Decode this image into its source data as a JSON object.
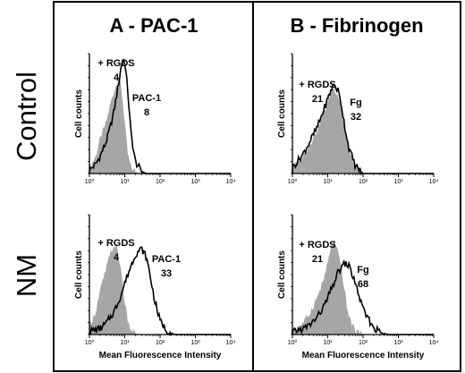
{
  "figure": {
    "row_labels": [
      "Control",
      "NM"
    ],
    "panel_titles": [
      "A - PAC-1",
      "B - Fibrinogen"
    ]
  },
  "chart_data": [
    {
      "type": "area",
      "panel": "A - PAC-1",
      "row": "Control",
      "xlabel": "",
      "ylabel": "Cell counts",
      "xscale": "log",
      "xlim": [
        1,
        10000
      ],
      "x_ticks": [
        "10⁰",
        "10¹",
        "10²",
        "10³",
        "10⁴"
      ],
      "grid": false,
      "series": [
        {
          "name": "+ RGDS",
          "style": "gray filled",
          "color": "#a6a6a6",
          "x": [
            1,
            1.5,
            2,
            3,
            4,
            5,
            6,
            7,
            8,
            10,
            12,
            15,
            20,
            30,
            50
          ],
          "y": [
            0.05,
            0.15,
            0.3,
            0.45,
            0.62,
            0.72,
            0.8,
            0.85,
            0.75,
            0.45,
            0.18,
            0.05,
            0.02,
            0,
            0
          ]
        },
        {
          "name": "PAC-1",
          "style": "black outline",
          "color": "#000000",
          "x": [
            1,
            1.5,
            2,
            3,
            4,
            5,
            6,
            7,
            8,
            9,
            10,
            12,
            15,
            20,
            30,
            40
          ],
          "y": [
            0.03,
            0.08,
            0.15,
            0.28,
            0.42,
            0.55,
            0.7,
            0.82,
            0.95,
            1.0,
            0.97,
            0.75,
            0.35,
            0.1,
            0.02,
            0
          ]
        }
      ],
      "annotations": [
        {
          "text": "+ RGDS",
          "value": "4"
        },
        {
          "text": "PAC-1",
          "value": "8"
        }
      ]
    },
    {
      "type": "area",
      "panel": "B - Fibrinogen",
      "row": "Control",
      "xlabel": "",
      "ylabel": "Cell counts",
      "xscale": "log",
      "xlim": [
        1,
        10000
      ],
      "x_ticks": [
        "10⁰",
        "10¹",
        "10²",
        "10³",
        "10⁴"
      ],
      "grid": false,
      "series": [
        {
          "name": "+ RGDS",
          "style": "gray filled",
          "color": "#a6a6a6",
          "x": [
            1,
            2,
            3,
            5,
            7,
            10,
            12,
            15,
            20,
            25,
            30,
            40,
            60,
            100
          ],
          "y": [
            0.05,
            0.15,
            0.25,
            0.38,
            0.5,
            0.62,
            0.7,
            0.75,
            0.68,
            0.55,
            0.4,
            0.2,
            0.06,
            0
          ]
        },
        {
          "name": "Fg",
          "style": "black outline",
          "color": "#000000",
          "x": [
            1,
            2,
            3,
            5,
            7,
            10,
            12,
            15,
            20,
            25,
            30,
            40,
            60,
            100
          ],
          "y": [
            0.05,
            0.17,
            0.27,
            0.4,
            0.52,
            0.65,
            0.72,
            0.78,
            0.72,
            0.58,
            0.42,
            0.22,
            0.07,
            0
          ]
        }
      ],
      "annotations": [
        {
          "text": "+ RGDS",
          "value": "21"
        },
        {
          "text": "Fg",
          "value": "32"
        }
      ]
    },
    {
      "type": "area",
      "panel": "A - PAC-1",
      "row": "NM",
      "xlabel": "Mean Fluorescence Intensity",
      "ylabel": "Cell counts",
      "xscale": "log",
      "xlim": [
        1,
        10000
      ],
      "x_ticks": [
        "10⁰",
        "10¹",
        "10²",
        "10³",
        "10⁴"
      ],
      "grid": false,
      "series": [
        {
          "name": "+ RGDS",
          "style": "gray filled",
          "color": "#a6a6a6",
          "x": [
            1,
            1.5,
            2,
            3,
            4,
            5,
            6,
            8,
            10,
            12,
            15,
            20,
            30
          ],
          "y": [
            0.08,
            0.2,
            0.38,
            0.58,
            0.72,
            0.78,
            0.75,
            0.55,
            0.28,
            0.12,
            0.04,
            0.01,
            0
          ]
        },
        {
          "name": "PAC-1",
          "style": "black outline",
          "color": "#000000",
          "x": [
            1,
            2,
            3,
            5,
            8,
            10,
            15,
            20,
            25,
            30,
            40,
            50,
            70,
            100,
            150,
            250
          ],
          "y": [
            0.03,
            0.05,
            0.1,
            0.2,
            0.35,
            0.45,
            0.6,
            0.7,
            0.73,
            0.75,
            0.68,
            0.55,
            0.3,
            0.12,
            0.04,
            0
          ]
        }
      ],
      "annotations": [
        {
          "text": "+ RGDS",
          "value": "4"
        },
        {
          "text": "PAC-1",
          "value": "33"
        }
      ]
    },
    {
      "type": "area",
      "panel": "B - Fibrinogen",
      "row": "NM",
      "xlabel": "Mean Fluorescence Intensity",
      "ylabel": "Cell counts",
      "xscale": "log",
      "xlim": [
        1,
        10000
      ],
      "x_ticks": [
        "10⁰",
        "10¹",
        "10²",
        "10³",
        "10⁴"
      ],
      "grid": false,
      "series": [
        {
          "name": "+ RGDS",
          "style": "gray filled",
          "color": "#a6a6a6",
          "x": [
            1,
            2,
            3,
            5,
            8,
            10,
            12,
            15,
            20,
            25,
            30,
            40,
            60,
            100
          ],
          "y": [
            0.04,
            0.1,
            0.18,
            0.32,
            0.5,
            0.62,
            0.75,
            0.82,
            0.7,
            0.55,
            0.38,
            0.15,
            0.04,
            0
          ]
        },
        {
          "name": "Fg",
          "style": "black outline",
          "color": "#000000",
          "x": [
            1,
            2,
            3,
            5,
            8,
            10,
            15,
            20,
            30,
            40,
            60,
            80,
            100,
            150,
            200,
            300,
            500
          ],
          "y": [
            0.02,
            0.05,
            0.08,
            0.15,
            0.25,
            0.32,
            0.45,
            0.55,
            0.62,
            0.6,
            0.45,
            0.32,
            0.22,
            0.12,
            0.06,
            0.02,
            0
          ]
        }
      ],
      "annotations": [
        {
          "text": "+ RGDS",
          "value": "21"
        },
        {
          "text": "Fg",
          "value": "68"
        }
      ]
    }
  ]
}
